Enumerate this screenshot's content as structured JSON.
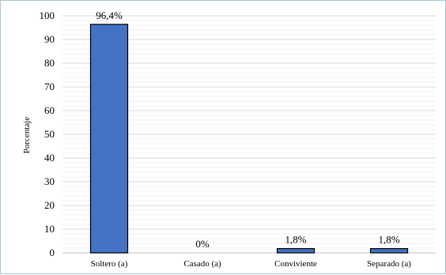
{
  "chart_data": {
    "type": "bar",
    "categories": [
      "Soltero (a)",
      "Casado (a)",
      "Conviviente",
      "Separado (a)"
    ],
    "values": [
      96.4,
      0,
      1.8,
      1.8
    ],
    "data_labels": [
      "96,4%",
      "0%",
      "1,8%",
      "1,8%"
    ],
    "ylabel": "Porcentaje",
    "xlabel": "",
    "ylim": [
      0,
      100
    ],
    "yticks": [
      0,
      10,
      20,
      30,
      40,
      50,
      60,
      70,
      80,
      90,
      100
    ],
    "grid": true,
    "bar_color": "#4472c4",
    "bar_edge_color": "#000000"
  }
}
